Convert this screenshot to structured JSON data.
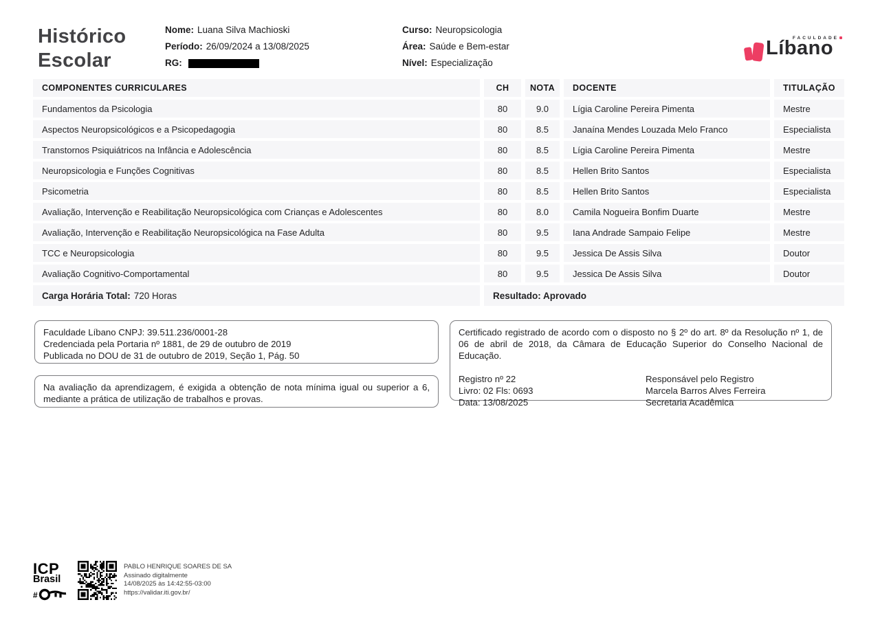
{
  "colors": {
    "accent": "#ED3E63",
    "row_bg": "#F6F6F8",
    "title": "#424245",
    "text": "#232325"
  },
  "header": {
    "title_line1": "Histórico",
    "title_line2": "Escolar",
    "student": {
      "nome_label": "Nome:",
      "nome": "Luana Silva Machioski",
      "periodo_label": "Período:",
      "periodo": "26/09/2024 a 13/08/2025",
      "rg_label": "RG:"
    },
    "course": {
      "curso_label": "Curso:",
      "curso": "Neuropsicologia",
      "area_label": "Área:",
      "area": "Saúde e Bem-estar",
      "nivel_label": "Nível:",
      "nivel": "Especialização"
    },
    "logo": {
      "faculdade": "FACULDADE",
      "name": "Líbano"
    }
  },
  "table": {
    "columns": [
      "COMPONENTES CURRICULARES",
      "CH",
      "NOTA",
      "DOCENTE",
      "TITULAÇÃO"
    ],
    "rows": [
      {
        "component": "Fundamentos da Psicologia",
        "ch": "80",
        "nota": "9.0",
        "docente": "Lígia Caroline Pereira Pimenta",
        "titulacao": "Mestre"
      },
      {
        "component": "Aspectos Neuropsicológicos e a Psicopedagogia",
        "ch": "80",
        "nota": "8.5",
        "docente": "Janaína Mendes Louzada Melo Franco",
        "titulacao": "Especialista"
      },
      {
        "component": "Transtornos Psiquiátricos na Infância e Adolescência",
        "ch": "80",
        "nota": "8.5",
        "docente": "Lígia Caroline Pereira Pimenta",
        "titulacao": "Mestre"
      },
      {
        "component": "Neuropsicologia e Funções Cognitivas",
        "ch": "80",
        "nota": "8.5",
        "docente": "Hellen Brito Santos",
        "titulacao": "Especialista"
      },
      {
        "component": "Psicometria",
        "ch": "80",
        "nota": "8.5",
        "docente": "Hellen Brito Santos",
        "titulacao": "Especialista"
      },
      {
        "component": "Avaliação, Intervenção e Reabilitação Neuropsicológica com Crianças e Adolescentes",
        "ch": "80",
        "nota": "8.0",
        "docente": "Camila Nogueira Bonfim Duarte",
        "titulacao": "Mestre"
      },
      {
        "component": "Avaliação, Intervenção e Reabilitação Neuropsicológica na Fase Adulta",
        "ch": "80",
        "nota": "9.5",
        "docente": "Iana Andrade Sampaio Felipe",
        "titulacao": "Mestre"
      },
      {
        "component": "TCC e Neuropsicologia",
        "ch": "80",
        "nota": "9.5",
        "docente": "Jessica De Assis Silva",
        "titulacao": "Doutor"
      },
      {
        "component": "Avaliação Cognitivo-Comportamental",
        "ch": "80",
        "nota": "9.5",
        "docente": "Jessica De Assis Silva",
        "titulacao": "Doutor"
      }
    ],
    "footer": {
      "carga_label": "Carga Horária Total:",
      "carga_value": "720 Horas",
      "resultado": "Resultado: Aprovado"
    }
  },
  "boxes": {
    "accreditation": {
      "line1": "Faculdade Líbano CNPJ: 39.511.236/0001-28",
      "line2": "Credenciada pela Portaria nº 1881, de 29 de outubro de 2019",
      "line3": "Publicada no DOU de 31 de outubro de 2019, Seção 1, Pág. 50"
    },
    "grading": "Na avaliação da aprendizagem, é exigida a obtenção de nota mínima igual ou superior a 6, mediante a prática de utilização de trabalhos e provas.",
    "certificate": {
      "paragraph": "Certificado registrado de acordo com o disposto no § 2º do art. 8º da Resolução nº 1, de 06 de abril de 2018, da Câmara de Educação Superior do Conselho Nacional de Educação.",
      "registro": "Registro nº 22",
      "livro": "Livro: 02 Fls: 0693",
      "data": "Data: 13/08/2025",
      "resp_title": "Responsável pelo Registro",
      "resp_name": "Marcela Barros Alves Ferreira",
      "resp_role": "Secretaria Acadêmica"
    }
  },
  "signature": {
    "icp_line1": "ICP",
    "icp_line2": "Brasil",
    "name": "PABLO HENRIQUE SOARES DE SA",
    "line2": "Assinado digitalmente",
    "line3": "14/08/2025 às 14:42:55-03:00",
    "line4": "https://validar.iti.gov.br/"
  }
}
